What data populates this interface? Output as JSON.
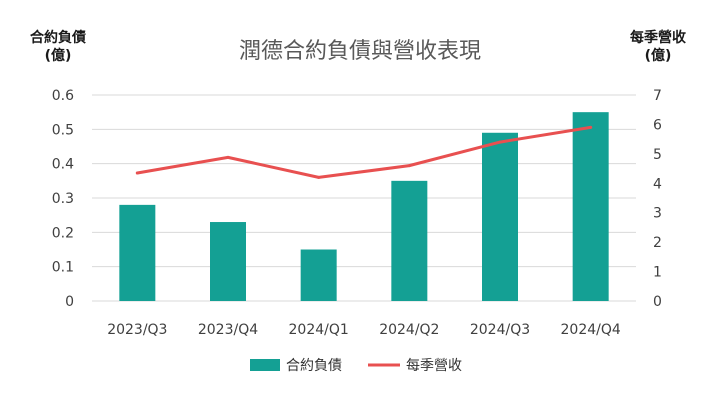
{
  "chart_data": {
    "type": "bar",
    "title": "潤德合約負債與營收表現",
    "categories": [
      "2023/Q3",
      "2023/Q4",
      "2024/Q1",
      "2024/Q2",
      "2024/Q3",
      "2024/Q4"
    ],
    "y_left": {
      "label_line1": "合約負債",
      "label_line2": "(億)",
      "range": [
        0,
        0.6
      ],
      "ticks": [
        "0",
        "0.1",
        "0.2",
        "0.3",
        "0.4",
        "0.5",
        "0.6"
      ]
    },
    "y_right": {
      "label_line1": "每季營收",
      "label_line2": "(億)",
      "range": [
        0,
        7
      ],
      "ticks": [
        "0",
        "1",
        "2",
        "3",
        "4",
        "5",
        "6",
        "7"
      ]
    },
    "series": [
      {
        "name": "合約負債",
        "type": "bar",
        "axis": "left",
        "color": "#14A094",
        "values": [
          0.28,
          0.23,
          0.15,
          0.35,
          0.49,
          0.55
        ]
      },
      {
        "name": "每季營收",
        "type": "line",
        "axis": "right",
        "color": "#E85050",
        "values": [
          4.35,
          4.88,
          4.2,
          4.6,
          5.4,
          5.9
        ]
      }
    ],
    "grid": true,
    "legend_position": "bottom"
  }
}
